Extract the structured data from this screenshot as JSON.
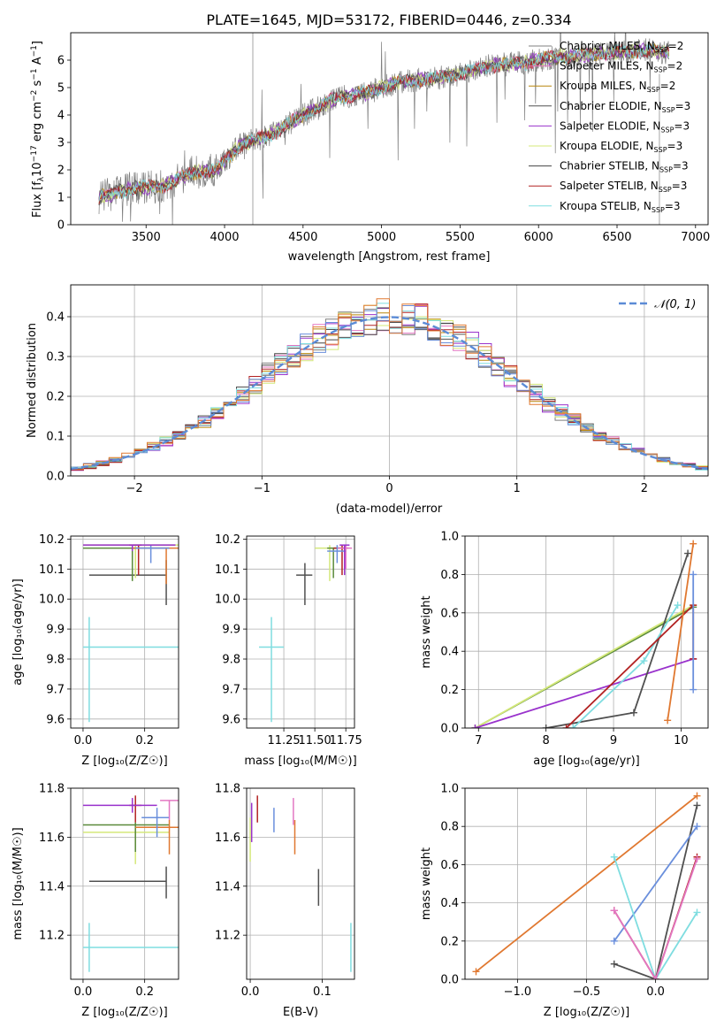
{
  "figure": {
    "title": "PLATE=1645, MJD=53172, FIBERID=0446, z=0.334"
  },
  "model_colors": [
    "#7f7f7f",
    "#e377c2",
    "#b8860b",
    "#505050",
    "#9932cc",
    "#d4e87a",
    "#444444",
    "#b22222",
    "#7fdde0",
    "#6a8fdc",
    "#e07830"
  ],
  "chart_data": [
    {
      "id": "spectrum",
      "type": "line",
      "xlabel": "wavelength [Angstrom, rest frame]",
      "ylabel_pre": "Flux [f",
      "ylabel_sub": "λ",
      "ylabel_post": "10",
      "ylabel_sup1": "−17",
      "ylabel_post2": " erg cm",
      "ylabel_sup2": "−2",
      "ylabel_post3": " s",
      "ylabel_sup3": "−1",
      "ylabel_post4": " A",
      "ylabel_sup4": "−1",
      "ylabel_end": "]",
      "xlim": [
        3020,
        7080
      ],
      "ylim": [
        0,
        7
      ],
      "xticks": [
        3500,
        4000,
        4500,
        5000,
        5500,
        6000,
        6500,
        7000
      ],
      "yticks": [
        0,
        1,
        2,
        3,
        4,
        5,
        6
      ],
      "data_range": [
        3200,
        6830
      ],
      "anchors": [
        [
          3200,
          1.0
        ],
        [
          3400,
          1.3
        ],
        [
          3600,
          1.4
        ],
        [
          3800,
          1.9
        ],
        [
          3950,
          2.0
        ],
        [
          4100,
          2.9
        ],
        [
          4300,
          3.3
        ],
        [
          4500,
          4.0
        ],
        [
          4700,
          4.6
        ],
        [
          4900,
          4.8
        ],
        [
          5100,
          5.2
        ],
        [
          5300,
          5.3
        ],
        [
          5500,
          5.5
        ],
        [
          5700,
          5.8
        ],
        [
          5900,
          5.9
        ],
        [
          6100,
          6.1
        ],
        [
          6300,
          6.2
        ],
        [
          6500,
          6.3
        ],
        [
          6700,
          6.35
        ],
        [
          6830,
          6.3
        ]
      ],
      "legend_position": "top-right",
      "legend": [
        {
          "name": "Chabrier MILES",
          "nssp": "2",
          "color": "#7f7f7f"
        },
        {
          "name": "Salpeter MILES",
          "nssp": "2",
          "color": "#e377c2"
        },
        {
          "name": "Kroupa MILES",
          "nssp": "2",
          "color": "#b8860b"
        },
        {
          "name": "Chabrier ELODIE",
          "nssp": "3",
          "color": "#505050"
        },
        {
          "name": "Salpeter ELODIE",
          "nssp": "3",
          "color": "#9932cc"
        },
        {
          "name": "Kroupa ELODIE",
          "nssp": "3",
          "color": "#d4e87a"
        },
        {
          "name": "Chabrier STELIB",
          "nssp": "3",
          "color": "#444444"
        },
        {
          "name": "Salpeter STELIB",
          "nssp": "3",
          "color": "#b22222"
        },
        {
          "name": "Kroupa STELIB",
          "nssp": "3",
          "color": "#7fdde0"
        }
      ],
      "legend_nssp_label": "N",
      "legend_nssp_sub": "SSP"
    },
    {
      "id": "residuals",
      "type": "line",
      "xlabel": "(data-model)/error",
      "ylabel": "Normed distribution",
      "xlim": [
        -2.5,
        2.5
      ],
      "ylim": [
        0,
        0.48
      ],
      "xticks": [
        -2,
        -1,
        0,
        1,
        2
      ],
      "yticks": [
        0.0,
        0.1,
        0.2,
        0.3,
        0.4
      ],
      "ytick_labels": [
        "0.0",
        "0.1",
        "0.2",
        "0.3",
        "0.4"
      ],
      "xtick_labels": [
        "−2",
        "−1",
        "0",
        "1",
        "2"
      ],
      "bins": 50,
      "legend": [
        {
          "name": "𝒩(0, 1)",
          "color": "#5b8bd6",
          "style": "dashed"
        }
      ],
      "legend_position": "top-right"
    },
    {
      "id": "age-vs-Z",
      "type": "scatter",
      "xlabel": "Z [log₁₀(Z/Z☉)]",
      "ylabel": "age  [log₁₀(age/yr)]",
      "xlim": [
        -0.04,
        0.31
      ],
      "ylim": [
        9.57,
        10.21
      ],
      "xticks": [
        0.0,
        0.2
      ],
      "xtick_labels": [
        "0.0",
        "0.2"
      ],
      "yticks": [
        9.6,
        9.7,
        9.8,
        9.9,
        10.0,
        10.1,
        10.2
      ],
      "ytick_labels": [
        "9.6",
        "9.7",
        "9.8",
        "9.9",
        "10.0",
        "10.1",
        "10.2"
      ],
      "points": [
        {
          "x": 0.02,
          "y": 9.84,
          "xerr": [
            0.0,
            0.33
          ],
          "yerr": [
            9.59,
            9.94
          ],
          "color": "#7fdde0"
        },
        {
          "x": 0.27,
          "y": 10.08,
          "xerr": [
            0.02,
            0.27
          ],
          "yerr": [
            9.98,
            10.13
          ],
          "color": "#505050"
        },
        {
          "x": 0.17,
          "y": 10.18,
          "xerr": [
            0.0,
            0.33
          ],
          "yerr": [
            10.07,
            10.18
          ],
          "color": "#d4e87a"
        },
        {
          "x": 0.16,
          "y": 10.17,
          "xerr": [
            0.0,
            0.28
          ],
          "yerr": [
            10.06,
            10.17
          ],
          "color": "#5a8a3a"
        },
        {
          "x": 0.18,
          "y": 10.18,
          "xerr": [
            0.15,
            0.19
          ],
          "yerr": [
            10.08,
            10.18
          ],
          "color": "#b22222"
        },
        {
          "x": 0.27,
          "y": 10.17,
          "xerr": [
            0.16,
            0.31
          ],
          "yerr": [
            10.05,
            10.17
          ],
          "color": "#e07830"
        },
        {
          "x": 0.22,
          "y": 10.17,
          "xerr": [
            0.17,
            0.28
          ],
          "yerr": [
            10.12,
            10.18
          ],
          "color": "#6a8fdc"
        },
        {
          "x": 0.16,
          "y": 10.18,
          "xerr": [
            0.0,
            0.3
          ],
          "yerr": [
            10.16,
            10.18
          ],
          "color": "#9932cc"
        }
      ]
    },
    {
      "id": "age-vs-mass",
      "type": "scatter",
      "xlabel": "mass [log₁₀(M/M☉)]",
      "xlim": [
        10.95,
        11.82
      ],
      "ylim": [
        9.57,
        10.21
      ],
      "xticks": [
        11.25,
        11.5,
        11.75
      ],
      "xtick_labels": [
        "11.25",
        "11.50",
        "11.75"
      ],
      "yticks": [
        9.6,
        9.7,
        9.8,
        9.9,
        10.0,
        10.1,
        10.2
      ],
      "ytick_labels": [
        "9.6",
        "9.7",
        "9.8",
        "9.9",
        "10.0",
        "10.1",
        "10.2"
      ],
      "points": [
        {
          "x": 11.15,
          "y": 9.84,
          "xerr": [
            11.05,
            11.25
          ],
          "yerr": [
            9.59,
            9.94
          ],
          "color": "#7fdde0"
        },
        {
          "x": 11.42,
          "y": 10.08,
          "xerr": [
            11.35,
            11.48
          ],
          "yerr": [
            9.98,
            10.12
          ],
          "color": "#505050"
        },
        {
          "x": 11.62,
          "y": 10.17,
          "xerr": [
            11.5,
            11.75
          ],
          "yerr": [
            10.06,
            10.18
          ],
          "color": "#d4e87a"
        },
        {
          "x": 11.65,
          "y": 10.17,
          "xerr": [
            11.6,
            11.75
          ],
          "yerr": [
            10.07,
            10.17
          ],
          "color": "#5a8a3a"
        },
        {
          "x": 11.72,
          "y": 10.17,
          "xerr": [
            11.65,
            11.77
          ],
          "yerr": [
            10.08,
            10.18
          ],
          "color": "#b22222"
        },
        {
          "x": 11.75,
          "y": 10.17,
          "xerr": [
            11.68,
            11.8
          ],
          "yerr": [
            10.1,
            10.18
          ],
          "color": "#e377c2"
        },
        {
          "x": 11.68,
          "y": 10.16,
          "xerr": [
            11.6,
            11.75
          ],
          "yerr": [
            10.12,
            10.18
          ],
          "color": "#6a8fdc"
        },
        {
          "x": 11.74,
          "y": 10.18,
          "xerr": [
            11.7,
            11.78
          ],
          "yerr": [
            10.08,
            10.18
          ],
          "color": "#9932cc"
        }
      ]
    },
    {
      "id": "mass-weight-vs-age",
      "type": "line",
      "xlabel": "age  [log₁₀(age/yr)]",
      "ylabel": "mass weight",
      "xlim": [
        6.8,
        10.4
      ],
      "ylim": [
        0,
        1.0
      ],
      "xticks": [
        7,
        8,
        9,
        10
      ],
      "xtick_labels": [
        "7",
        "8",
        "9",
        "10"
      ],
      "yticks": [
        0,
        0.2,
        0.4,
        0.6,
        0.8,
        1.0
      ],
      "ytick_labels": [
        "0.0",
        "0.2",
        "0.4",
        "0.6",
        "0.8",
        "1.0"
      ],
      "series": [
        {
          "color": "#5a8a3a",
          "points": [
            [
              6.95,
              0.0
            ],
            [
              10.18,
              0.63
            ]
          ]
        },
        {
          "color": "#d4e87a",
          "points": [
            [
              6.95,
              0.0
            ],
            [
              10.18,
              0.64
            ]
          ]
        },
        {
          "color": "#9932cc",
          "points": [
            [
              6.95,
              0.0
            ],
            [
              10.18,
              0.36
            ]
          ]
        },
        {
          "color": "#505050",
          "points": [
            [
              8.0,
              0.0
            ],
            [
              9.3,
              0.08
            ],
            [
              10.1,
              0.91
            ]
          ]
        },
        {
          "color": "#7fdde0",
          "points": [
            [
              8.4,
              0.0
            ],
            [
              9.45,
              0.35
            ],
            [
              9.95,
              0.64
            ]
          ]
        },
        {
          "color": "#b22222",
          "points": [
            [
              8.3,
              0.0
            ],
            [
              10.18,
              0.64
            ],
            [
              10.18,
              0.36
            ]
          ]
        },
        {
          "color": "#e07830",
          "points": [
            [
              9.8,
              0.04
            ],
            [
              10.18,
              0.96
            ]
          ]
        },
        {
          "color": "#6a8fdc",
          "points": [
            [
              10.18,
              0.2
            ],
            [
              10.18,
              0.8
            ]
          ]
        }
      ]
    },
    {
      "id": "mass-vs-Z",
      "type": "scatter",
      "xlabel": "Z [log₁₀(Z/Z☉)]",
      "ylabel": "mass [log₁₀(M/M☉)]",
      "xlim": [
        -0.04,
        0.31
      ],
      "ylim": [
        11.02,
        11.8
      ],
      "xticks": [
        0.0,
        0.2
      ],
      "xtick_labels": [
        "0.0",
        "0.2"
      ],
      "yticks": [
        11.2,
        11.4,
        11.6,
        11.8
      ],
      "ytick_labels": [
        "11.2",
        "11.4",
        "11.6",
        "11.8"
      ],
      "points": [
        {
          "x": 0.02,
          "y": 11.15,
          "xerr": [
            0.0,
            0.33
          ],
          "yerr": [
            11.05,
            11.25
          ],
          "color": "#7fdde0"
        },
        {
          "x": 0.27,
          "y": 11.42,
          "xerr": [
            0.02,
            0.27
          ],
          "yerr": [
            11.35,
            11.48
          ],
          "color": "#505050"
        },
        {
          "x": 0.17,
          "y": 11.62,
          "xerr": [
            0.0,
            0.28
          ],
          "yerr": [
            11.49,
            11.66
          ],
          "color": "#d4e87a"
        },
        {
          "x": 0.17,
          "y": 11.65,
          "xerr": [
            0.0,
            0.28
          ],
          "yerr": [
            11.54,
            11.66
          ],
          "color": "#5a8a3a"
        },
        {
          "x": 0.17,
          "y": 11.73,
          "xerr": [
            0.15,
            0.19
          ],
          "yerr": [
            11.66,
            11.77
          ],
          "color": "#b22222"
        },
        {
          "x": 0.28,
          "y": 11.64,
          "xerr": [
            0.17,
            0.31
          ],
          "yerr": [
            11.53,
            11.67
          ],
          "color": "#e07830"
        },
        {
          "x": 0.24,
          "y": 11.68,
          "xerr": [
            0.19,
            0.28
          ],
          "yerr": [
            11.6,
            11.72
          ],
          "color": "#6a8fdc"
        },
        {
          "x": 0.28,
          "y": 11.75,
          "xerr": [
            0.25,
            0.31
          ],
          "yerr": [
            11.67,
            11.75
          ],
          "color": "#e377c2"
        },
        {
          "x": 0.16,
          "y": 11.73,
          "xerr": [
            0.0,
            0.24
          ],
          "yerr": [
            11.7,
            11.76
          ],
          "color": "#9932cc"
        }
      ]
    },
    {
      "id": "mass-vs-ebv",
      "type": "scatter",
      "xlabel": "E(B-V)",
      "xlim": [
        -0.005,
        0.145
      ],
      "ylim": [
        11.02,
        11.8
      ],
      "xticks": [
        0.0,
        0.1
      ],
      "xtick_labels": [
        "0.0",
        "0.1"
      ],
      "yticks": [
        11.2,
        11.4,
        11.6,
        11.8
      ],
      "ytick_labels": [
        "11.2",
        "11.4",
        "11.6",
        "11.8"
      ],
      "points": [
        {
          "x": 0.14,
          "y": 11.15,
          "yerr": [
            11.05,
            11.25
          ],
          "color": "#7fdde0"
        },
        {
          "x": 0.095,
          "y": 11.4,
          "yerr": [
            11.32,
            11.47
          ],
          "color": "#505050"
        },
        {
          "x": 0.0,
          "y": 11.62,
          "yerr": [
            11.5,
            11.68
          ],
          "color": "#d4e87a"
        },
        {
          "x": 0.002,
          "y": 11.66,
          "yerr": [
            11.58,
            11.74
          ],
          "color": "#9932cc"
        },
        {
          "x": 0.01,
          "y": 11.72,
          "yerr": [
            11.66,
            11.77
          ],
          "color": "#b22222"
        },
        {
          "x": 0.062,
          "y": 11.6,
          "yerr": [
            11.53,
            11.67
          ],
          "color": "#e07830"
        },
        {
          "x": 0.033,
          "y": 11.68,
          "yerr": [
            11.62,
            11.72
          ],
          "color": "#6a8fdc"
        },
        {
          "x": 0.06,
          "y": 11.72,
          "yerr": [
            11.65,
            11.76
          ],
          "color": "#e377c2"
        }
      ]
    },
    {
      "id": "mass-weight-vs-Z",
      "type": "line",
      "xlabel": "Z [log₁₀(Z/Z☉)]",
      "ylabel": "mass weight",
      "xlim": [
        -1.38,
        0.38
      ],
      "ylim": [
        0,
        1.0
      ],
      "xticks": [
        -1.0,
        -0.5,
        0.0
      ],
      "xtick_labels": [
        "−1.0",
        "−0.5",
        "0.0"
      ],
      "yticks": [
        0,
        0.2,
        0.4,
        0.6,
        0.8,
        1.0
      ],
      "ytick_labels": [
        "0.0",
        "0.2",
        "0.4",
        "0.6",
        "0.8",
        "1.0"
      ],
      "series": [
        {
          "color": "#e07830",
          "points": [
            [
              -1.3,
              0.04
            ],
            [
              0.3,
              0.96
            ]
          ]
        },
        {
          "color": "#505050",
          "points": [
            [
              -0.3,
              0.08
            ],
            [
              0.0,
              0.0
            ],
            [
              0.3,
              0.91
            ]
          ]
        },
        {
          "color": "#6a8fdc",
          "points": [
            [
              -0.3,
              0.2
            ],
            [
              0.3,
              0.8
            ]
          ]
        },
        {
          "color": "#7fdde0",
          "points": [
            [
              -0.3,
              0.64
            ],
            [
              0.0,
              0.0
            ],
            [
              0.3,
              0.35
            ]
          ]
        },
        {
          "color": "#b22222",
          "points": [
            [
              -0.3,
              0.36
            ],
            [
              0.0,
              0.0
            ],
            [
              0.3,
              0.64
            ]
          ]
        },
        {
          "color": "#e377c2",
          "points": [
            [
              -0.3,
              0.36
            ],
            [
              0.0,
              0.0
            ],
            [
              0.3,
              0.63
            ]
          ]
        }
      ]
    }
  ]
}
